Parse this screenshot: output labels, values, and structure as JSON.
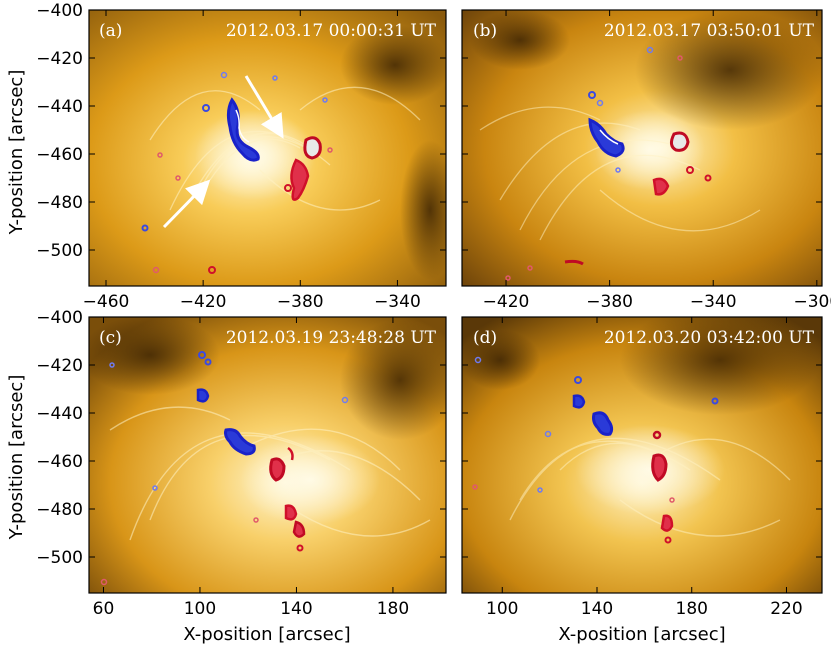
{
  "figure": {
    "x_axis_label": "X-position [arcsec]",
    "y_axis_label": "Y-position [arcsec]",
    "colors": {
      "background_bright": "#fff1c0",
      "background_mid": "#e6a21c",
      "background_dark": "#4a2e06",
      "negative_polarity": "#1a22c8",
      "positive_polarity": "#d0102a",
      "arrow": "#ffffff"
    }
  },
  "panels": [
    {
      "label": "(a)",
      "timestamp": "2012.03.17 00:00:31 UT",
      "x_range": [
        -467,
        -320
      ],
      "y_range": [
        -515,
        -400
      ],
      "x_ticks": [
        "−460",
        "−420",
        "−380",
        "−340"
      ],
      "y_ticks": [
        "−400",
        "−420",
        "−440",
        "−460",
        "−480",
        "−500"
      ],
      "arrows": 2
    },
    {
      "label": "(b)",
      "timestamp": "2012.03.17 03:50:01 UT",
      "x_range": [
        -437,
        -298
      ],
      "y_range": [
        -515,
        -400
      ],
      "x_ticks": [
        "−420",
        "−380",
        "−340",
        "−300"
      ],
      "y_ticks": [],
      "arrows": 0
    },
    {
      "label": "(c)",
      "timestamp": "2012.03.19 23:48:28 UT",
      "x_range": [
        54,
        202
      ],
      "y_range": [
        -515,
        -400
      ],
      "x_ticks": [
        "60",
        "100",
        "140",
        "180"
      ],
      "y_ticks": [
        "−400",
        "−420",
        "−440",
        "−460",
        "−480",
        "−500"
      ],
      "arrows": 0
    },
    {
      "label": "(d)",
      "timestamp": "2012.03.20 03:42:00 UT",
      "x_range": [
        83,
        235
      ],
      "y_range": [
        -515,
        -400
      ],
      "x_ticks": [
        "100",
        "140",
        "180",
        "220"
      ],
      "y_ticks": [],
      "arrows": 0
    }
  ]
}
